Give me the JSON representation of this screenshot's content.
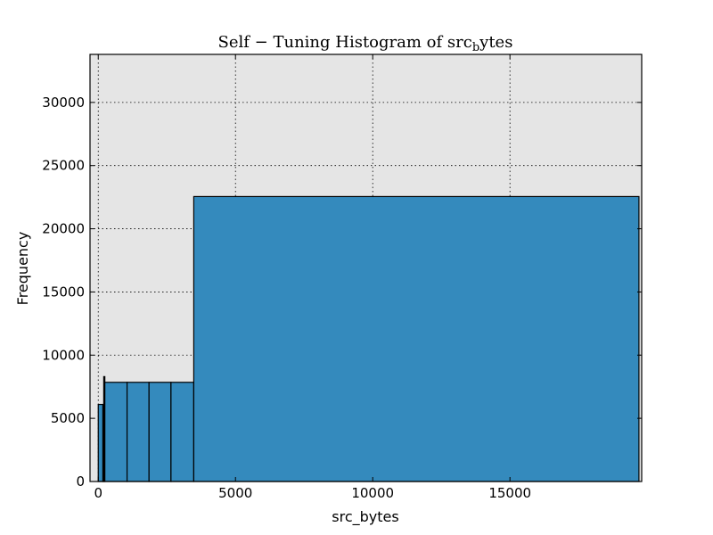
{
  "chart_data": {
    "type": "bar",
    "title": "Self − Tuning Histogram of src",
    "title_subscript": "b",
    "title_suffix": "ytes",
    "xlabel": "src_bytes",
    "ylabel": "Frequency",
    "xlim": [
      -300,
      19800
    ],
    "ylim": [
      0,
      33800
    ],
    "xticks": [
      0,
      5000,
      10000,
      15000
    ],
    "yticks": [
      0,
      5000,
      10000,
      15000,
      20000,
      25000,
      30000
    ],
    "grid": true,
    "bar_color": "#348ABD",
    "plot_background": "#E5E5E5",
    "bins": [
      {
        "x0": 0,
        "x1": 170,
        "value": 6100
      },
      {
        "x0": 170,
        "x1": 200,
        "value": 6100
      },
      {
        "x0": 200,
        "x1": 240,
        "value": 8300
      },
      {
        "x0": 240,
        "x1": 1050,
        "value": 7850
      },
      {
        "x0": 1050,
        "x1": 1850,
        "value": 7850
      },
      {
        "x0": 1850,
        "x1": 2650,
        "value": 7850
      },
      {
        "x0": 2650,
        "x1": 3480,
        "value": 7850
      },
      {
        "x0": 3480,
        "x1": 19700,
        "value": 22550
      }
    ]
  }
}
